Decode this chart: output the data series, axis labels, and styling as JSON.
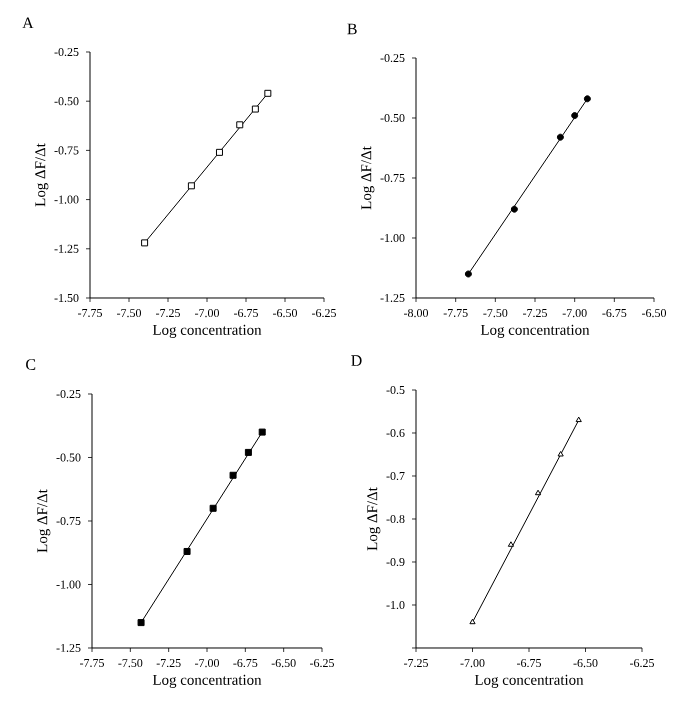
{
  "chart_data": [
    {
      "type": "scatter",
      "title": "A",
      "xlabel": "Log concentration",
      "ylabel": "Log ΔF/Δt",
      "xlim": [
        -7.75,
        -6.25
      ],
      "ylim": [
        -1.5,
        -0.25
      ],
      "xticks": [
        {
          "value": -7.75,
          "label": "-7.75"
        },
        {
          "value": -7.5,
          "label": "-7.50"
        },
        {
          "value": -7.25,
          "label": "-7.25"
        },
        {
          "value": -7.0,
          "label": "-7.00"
        },
        {
          "value": -6.75,
          "label": "-6.75"
        },
        {
          "value": -6.5,
          "label": "-6.50"
        },
        {
          "value": -6.25,
          "label": "-6.25"
        }
      ],
      "yticks": [
        {
          "value": -1.5,
          "label": "-1.50"
        },
        {
          "value": -1.25,
          "label": "-1.25"
        },
        {
          "value": -1.0,
          "label": "-1.00"
        },
        {
          "value": -0.75,
          "label": "-0.75"
        },
        {
          "value": -0.5,
          "label": "-0.50"
        },
        {
          "value": -0.25,
          "label": "-0.25"
        }
      ],
      "series": [
        {
          "type": "scatter",
          "marker": "square",
          "color": "#ffffff",
          "x": [
            -7.4,
            -7.1,
            -6.92,
            -6.79,
            -6.69,
            -6.61
          ],
          "values": [
            -1.22,
            -0.93,
            -0.76,
            -0.62,
            -0.54,
            -0.46
          ]
        },
        {
          "type": "line",
          "marker": "none",
          "color": "#000000",
          "x": [
            -7.4,
            -6.61
          ],
          "values": [
            -1.22,
            -0.46
          ]
        }
      ]
    },
    {
      "type": "scatter",
      "title": "B",
      "xlabel": "Log concentration",
      "ylabel": "Log ΔF/Δt",
      "xlim": [
        -8.0,
        -6.5
      ],
      "ylim": [
        -1.25,
        -0.25
      ],
      "xticks": [
        {
          "value": -8.0,
          "label": "-8.00"
        },
        {
          "value": -7.75,
          "label": "-7.75"
        },
        {
          "value": -7.5,
          "label": "-7.50"
        },
        {
          "value": -7.25,
          "label": "-7.25"
        },
        {
          "value": -7.0,
          "label": "-7.00"
        },
        {
          "value": -6.75,
          "label": "-6.75"
        },
        {
          "value": -6.5,
          "label": "-6.50"
        }
      ],
      "yticks": [
        {
          "value": -1.25,
          "label": "-1.25"
        },
        {
          "value": -1.0,
          "label": "-1.00"
        },
        {
          "value": -0.75,
          "label": "-0.75"
        },
        {
          "value": -0.5,
          "label": "-0.50"
        },
        {
          "value": -0.25,
          "label": "-0.25"
        }
      ],
      "series": [
        {
          "type": "scatter",
          "marker": "circle",
          "color": "#000000",
          "x": [
            -7.67,
            -7.38,
            -7.09,
            -7.0,
            -6.92
          ],
          "values": [
            -1.15,
            -0.88,
            -0.58,
            -0.49,
            -0.42
          ]
        },
        {
          "type": "line",
          "marker": "none",
          "color": "#000000",
          "x": [
            -7.67,
            -6.92
          ],
          "values": [
            -1.15,
            -0.42
          ]
        }
      ]
    },
    {
      "type": "scatter",
      "title": "C",
      "xlabel": "Log concentration",
      "ylabel": "Log ΔF/Δt",
      "xlim": [
        -7.75,
        -6.25
      ],
      "ylim": [
        -1.25,
        -0.25
      ],
      "xticks": [
        {
          "value": -7.75,
          "label": "-7.75"
        },
        {
          "value": -7.5,
          "label": "-7.50"
        },
        {
          "value": -7.25,
          "label": "-7.25"
        },
        {
          "value": -7.0,
          "label": "-7.00"
        },
        {
          "value": -6.75,
          "label": "-6.75"
        },
        {
          "value": -6.5,
          "label": "-6.50"
        },
        {
          "value": -6.25,
          "label": "-6.25"
        }
      ],
      "yticks": [
        {
          "value": -1.25,
          "label": "-1.25"
        },
        {
          "value": -1.0,
          "label": "-1.00"
        },
        {
          "value": -0.75,
          "label": "-0.75"
        },
        {
          "value": -0.5,
          "label": "-0.50"
        },
        {
          "value": -0.25,
          "label": "-0.25"
        }
      ],
      "series": [
        {
          "type": "scatter",
          "marker": "square",
          "color": "#000000",
          "x": [
            -7.43,
            -7.13,
            -6.96,
            -6.83,
            -6.73,
            -6.64
          ],
          "values": [
            -1.15,
            -0.87,
            -0.7,
            -0.57,
            -0.48,
            -0.4
          ]
        },
        {
          "type": "line",
          "marker": "none",
          "color": "#000000",
          "x": [
            -7.43,
            -6.64
          ],
          "values": [
            -1.15,
            -0.4
          ]
        }
      ]
    },
    {
      "type": "scatter",
      "title": "D",
      "xlabel": "Log concentration",
      "ylabel": "Log ΔF/Δt",
      "xlim": [
        -7.25,
        -6.25
      ],
      "ylim": [
        -1.1,
        -0.5
      ],
      "xticks": [
        {
          "value": -7.25,
          "label": "-7.25"
        },
        {
          "value": -7.0,
          "label": "-7.00"
        },
        {
          "value": -6.75,
          "label": "-6.75"
        },
        {
          "value": -6.5,
          "label": "-6.50"
        },
        {
          "value": -6.25,
          "label": "-6.25"
        }
      ],
      "yticks": [
        {
          "value": -1.1,
          "label": null
        },
        {
          "value": -1.0,
          "label": "-1.0"
        },
        {
          "value": -0.9,
          "label": "-0.9"
        },
        {
          "value": -0.8,
          "label": "-0.8"
        },
        {
          "value": -0.7,
          "label": "-0.7"
        },
        {
          "value": -0.6,
          "label": "-0.6"
        },
        {
          "value": -0.5,
          "label": "-0.5"
        }
      ],
      "series": [
        {
          "type": "scatter",
          "marker": "triangle",
          "color": "#ffffff",
          "x": [
            -7.0,
            -6.83,
            -6.71,
            -6.61,
            -6.53
          ],
          "values": [
            -1.04,
            -0.86,
            -0.74,
            -0.65,
            -0.57
          ]
        },
        {
          "type": "line",
          "marker": "none",
          "color": "#000000",
          "x": [
            -7.0,
            -6.53
          ],
          "values": [
            -1.04,
            -0.57
          ]
        }
      ]
    }
  ]
}
